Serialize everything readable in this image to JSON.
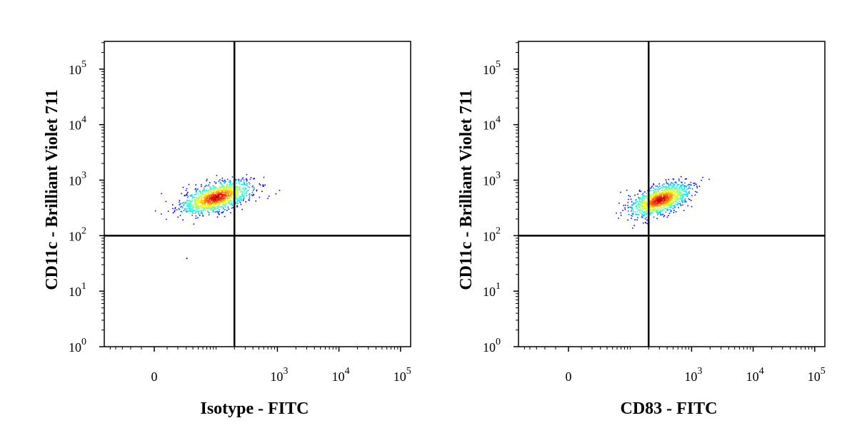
{
  "chart_data": [
    {
      "type": "scatter",
      "xlabel": "Isotype - FITC",
      "ylabel": "CD11c - Brilliant Violet 711",
      "x_scale": "biexponential",
      "y_scale": "log",
      "x_tick_labels": [
        {
          "value": 0,
          "text": "0"
        },
        {
          "value": 1000,
          "base": "10",
          "exp": "3"
        },
        {
          "value": 10000,
          "base": "10",
          "exp": "4"
        },
        {
          "value": 100000,
          "base": "10",
          "exp": "5"
        }
      ],
      "y_tick_labels": [
        {
          "value": 1,
          "base": "10",
          "exp": "0"
        },
        {
          "value": 10,
          "base": "10",
          "exp": "1"
        },
        {
          "value": 100,
          "base": "10",
          "exp": "2"
        },
        {
          "value": 1000,
          "base": "10",
          "exp": "3"
        },
        {
          "value": 10000,
          "base": "10",
          "exp": "4"
        },
        {
          "value": 100000,
          "base": "10",
          "exp": "5"
        }
      ],
      "quadrant_gate": {
        "x": 200,
        "y": 100
      },
      "population": {
        "x_center": 100,
        "y_center": 500,
        "x_range": [
          0,
          300
        ],
        "y_range": [
          150,
          1500
        ]
      },
      "outliers": [
        {
          "x": 30,
          "y": 40
        }
      ]
    },
    {
      "type": "scatter",
      "xlabel": "CD83 - FITC",
      "ylabel": "CD11c - Brilliant Violet 711",
      "x_scale": "biexponential",
      "y_scale": "log",
      "x_tick_labels": [
        {
          "value": 0,
          "text": "0"
        },
        {
          "value": 1000,
          "base": "10",
          "exp": "3"
        },
        {
          "value": 10000,
          "base": "10",
          "exp": "4"
        },
        {
          "value": 100000,
          "base": "10",
          "exp": "5"
        }
      ],
      "y_tick_labels": [
        {
          "value": 1,
          "base": "10",
          "exp": "0"
        },
        {
          "value": 10,
          "base": "10",
          "exp": "1"
        },
        {
          "value": 100,
          "base": "10",
          "exp": "2"
        },
        {
          "value": 1000,
          "base": "10",
          "exp": "3"
        },
        {
          "value": 10000,
          "base": "10",
          "exp": "4"
        },
        {
          "value": 100000,
          "base": "10",
          "exp": "5"
        }
      ],
      "quadrant_gate": {
        "x": 200,
        "y": 100
      },
      "population": {
        "x_center": 300,
        "y_center": 450,
        "x_range": [
          80,
          1500
        ],
        "y_range": [
          150,
          1500
        ]
      },
      "outliers": []
    }
  ]
}
